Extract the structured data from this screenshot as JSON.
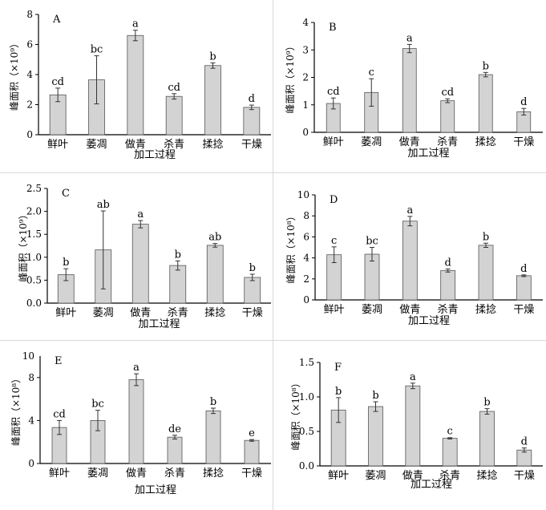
{
  "chart_data": [
    {
      "type": "bar",
      "panel_label": "A",
      "xlabel": "加工过程",
      "ylabel": "峰面积（×10⁹）",
      "categories": [
        "鲜叶",
        "萎凋",
        "做青",
        "杀青",
        "揉捻",
        "干燥"
      ],
      "values": [
        2.65,
        3.65,
        6.6,
        2.55,
        4.6,
        1.82
      ],
      "errors": [
        0.45,
        1.6,
        0.35,
        0.18,
        0.18,
        0.15
      ],
      "labels": [
        "cd",
        "bc",
        "a",
        "cd",
        "b",
        "d"
      ],
      "ylim": [
        0,
        8
      ],
      "yticks": [
        0,
        2,
        4,
        6,
        8
      ],
      "ytick_labels": [
        "0",
        "2",
        "4",
        "6",
        "8"
      ]
    },
    {
      "type": "bar",
      "panel_label": "B",
      "xlabel": "加工过程",
      "ylabel": "峰面积（×10⁹）",
      "categories": [
        "鲜叶",
        "萎凋",
        "做青",
        "杀青",
        "揉捻",
        "干燥"
      ],
      "values": [
        1.05,
        1.45,
        3.05,
        1.15,
        2.1,
        0.75
      ],
      "errors": [
        0.2,
        0.5,
        0.15,
        0.07,
        0.08,
        0.12
      ],
      "labels": [
        "cd",
        "c",
        "a",
        "cd",
        "b",
        "d"
      ],
      "ylim": [
        0,
        4
      ],
      "yticks": [
        0,
        1,
        2,
        3,
        4
      ],
      "ytick_labels": [
        "0",
        "1",
        "2",
        "3",
        "4"
      ]
    },
    {
      "type": "bar",
      "panel_label": "C",
      "xlabel": "加工过程",
      "ylabel": "峰面积（×10⁹）",
      "categories": [
        "鲜叶",
        "萎凋",
        "做青",
        "杀青",
        "揉捻",
        "干燥"
      ],
      "values": [
        0.62,
        1.16,
        1.72,
        0.82,
        1.26,
        0.56
      ],
      "errors": [
        0.13,
        0.85,
        0.08,
        0.1,
        0.04,
        0.07
      ],
      "labels": [
        "b",
        "ab",
        "a",
        "b",
        "ab",
        "b"
      ],
      "ylim": [
        0,
        2.5
      ],
      "yticks": [
        0,
        0.5,
        1,
        1.5,
        2,
        2.5
      ],
      "ytick_labels": [
        "0.0",
        "0.5",
        "1.0",
        "1.5",
        "2.0",
        "2.5"
      ]
    },
    {
      "type": "bar",
      "panel_label": "D",
      "xlabel": "加工过程",
      "ylabel": "峰面积（×10⁸）",
      "categories": [
        "鲜叶",
        "萎凋",
        "做青",
        "杀青",
        "揉捻",
        "干燥"
      ],
      "values": [
        4.3,
        4.35,
        7.5,
        2.8,
        5.2,
        2.3
      ],
      "errors": [
        0.75,
        0.65,
        0.45,
        0.15,
        0.2,
        0.08
      ],
      "labels": [
        "c",
        "bc",
        "a",
        "d",
        "b",
        "d"
      ],
      "ylim": [
        0,
        10
      ],
      "yticks": [
        0,
        2,
        4,
        6,
        8,
        10
      ],
      "ytick_labels": [
        "0",
        "2",
        "4",
        "6",
        "8",
        "10"
      ]
    },
    {
      "type": "bar",
      "panel_label": "E",
      "xlabel": "加工过程",
      "ylabel": "峰面积（×10⁸）",
      "categories": [
        "鲜叶",
        "萎凋",
        "做青",
        "杀青",
        "揉捻",
        "干燥"
      ],
      "values": [
        3.35,
        4.0,
        7.8,
        2.45,
        4.9,
        2.15
      ],
      "errors": [
        0.65,
        0.95,
        0.55,
        0.18,
        0.25,
        0.08
      ],
      "labels": [
        "cd",
        "bc",
        "a",
        "de",
        "b",
        "e"
      ],
      "ylim": [
        0,
        10
      ],
      "yticks": [
        0,
        4,
        8
      ],
      "ytick_labels": [
        "0",
        "4",
        "8"
      ],
      "ytop_label": "10"
    },
    {
      "type": "bar",
      "panel_label": "F",
      "xlabel": "加工过程",
      "ylabel": "峰面积（×10⁸）",
      "categories": [
        "鲜叶",
        "萎凋",
        "做青",
        "杀青",
        "揉捻",
        "干燥"
      ],
      "values": [
        0.81,
        0.86,
        1.16,
        0.4,
        0.79,
        0.23
      ],
      "errors": [
        0.18,
        0.07,
        0.04,
        0.01,
        0.04,
        0.03
      ],
      "labels": [
        "b",
        "b",
        "a",
        "c",
        "b",
        "d"
      ],
      "ylim": [
        0,
        1.5
      ],
      "yticks": [
        0,
        0.5,
        1,
        1.5
      ],
      "ytick_labels": [
        "0.0",
        "0.5",
        "1.0",
        "1.5"
      ]
    }
  ],
  "colors": {
    "bar_fill": "#d3d3d3",
    "bar_stroke": "#555555",
    "axis": "#000000",
    "error": "#333333"
  }
}
